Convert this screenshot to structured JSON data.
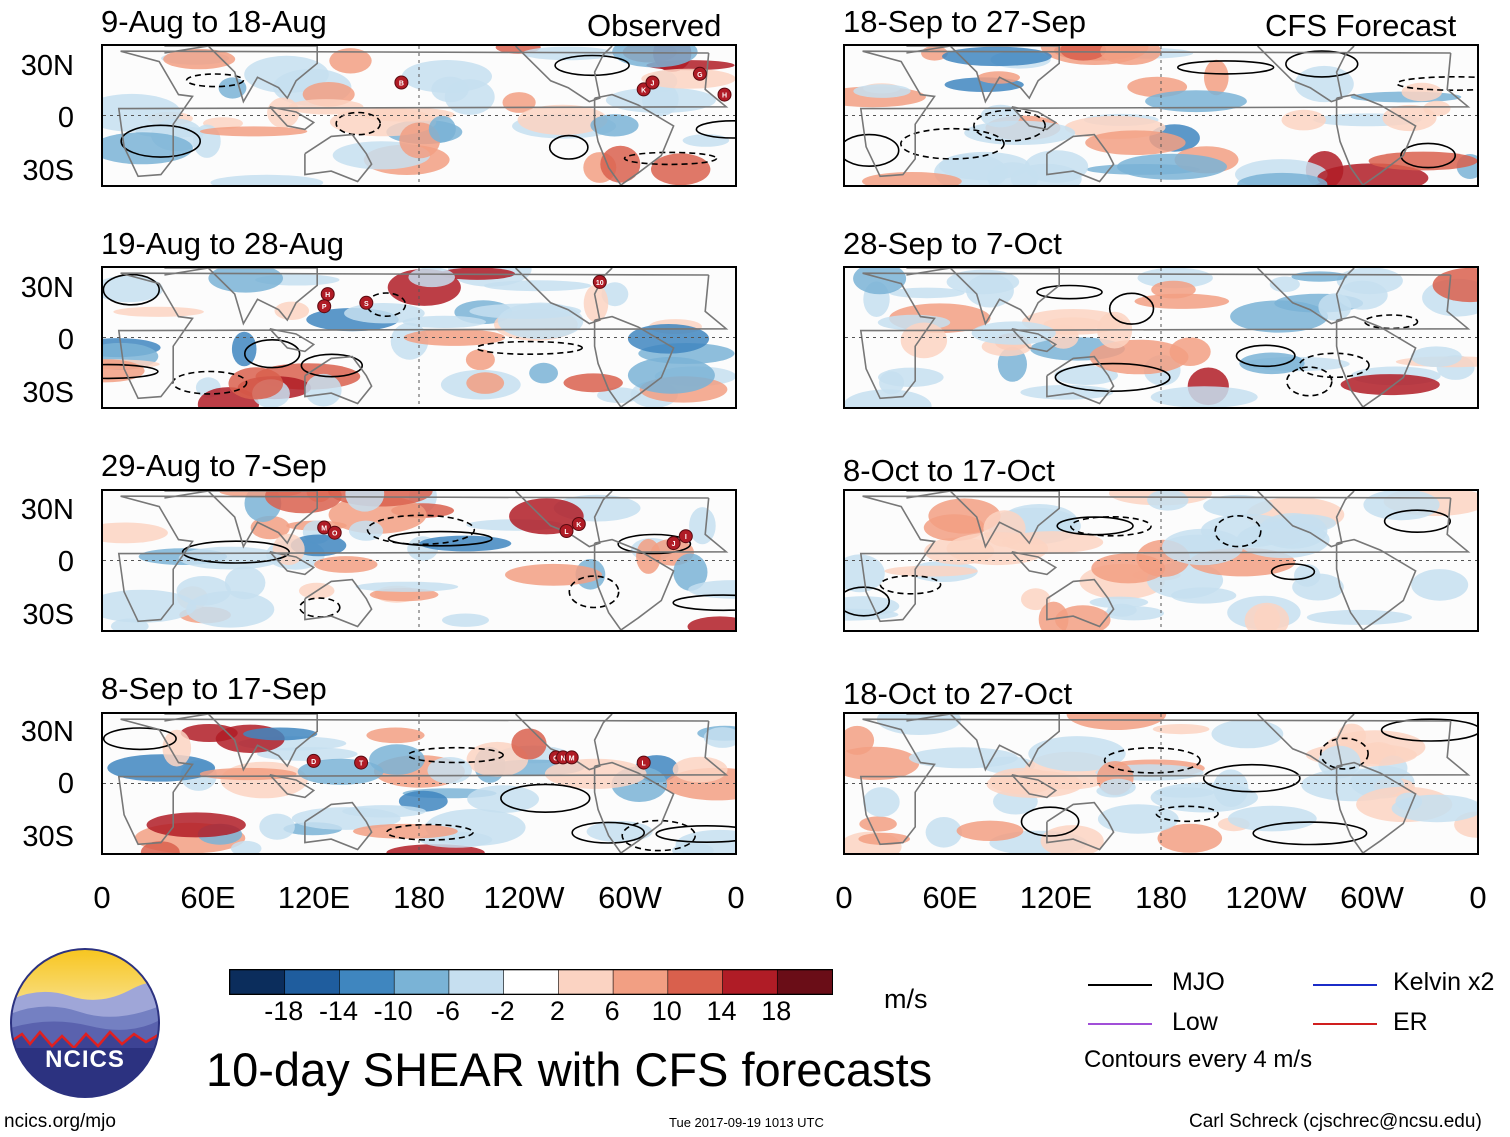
{
  "figure": {
    "main_title": "10-day SHEAR with CFS forecasts",
    "units_label": "m/s",
    "contour_note": "Contours every 4 m/s",
    "logo_text": "NCICS",
    "footer_left": "ncics.org/mjo",
    "footer_center": "Tue 2017-09-19 1013 UTC",
    "footer_right": "Carl Schreck (cjschrec@ncsu.edu)"
  },
  "column_headers": {
    "left": "Observed",
    "right": "CFS Forecast"
  },
  "axes": {
    "y_ticks": [
      "30N",
      "0",
      "30S"
    ],
    "x_ticks": [
      "0",
      "60E",
      "120E",
      "180",
      "120W",
      "60W",
      "0"
    ]
  },
  "panels_observed": [
    {
      "title": "9-Aug to 18-Aug",
      "storms": [
        "B",
        "K",
        "J",
        "G",
        "H"
      ]
    },
    {
      "title": "19-Aug to 28-Aug",
      "storms": [
        "H",
        "P",
        "S",
        "10"
      ]
    },
    {
      "title": "29-Aug to 7-Sep",
      "storms": [
        "M",
        "O",
        "L",
        "K",
        "J",
        "I"
      ]
    },
    {
      "title": "8-Sep to 17-Sep",
      "storms": [
        "D",
        "T",
        "O",
        "N",
        "M",
        "L"
      ]
    }
  ],
  "panels_forecast": [
    {
      "title": "18-Sep to 27-Sep"
    },
    {
      "title": "28-Sep to 7-Oct"
    },
    {
      "title": "8-Oct to 17-Oct"
    },
    {
      "title": "18-Oct to 27-Oct"
    }
  ],
  "colorbar": {
    "labels": [
      "-18",
      "-14",
      "-10",
      "-6",
      "-2",
      "2",
      "6",
      "10",
      "14",
      "18"
    ],
    "colors": [
      "#0b2d5c",
      "#1f5d9e",
      "#3f86bf",
      "#7ab3d6",
      "#c6dff0",
      "#ffffff",
      "#fbd3c2",
      "#f29f83",
      "#d9604d",
      "#b01c26",
      "#6a0d17"
    ]
  },
  "legend": [
    {
      "label": "MJO",
      "color": "#000000"
    },
    {
      "label": "Kelvin x2",
      "color": "#1b2cc8"
    },
    {
      "label": "Low",
      "color": "#a14fd8"
    },
    {
      "label": "ER",
      "color": "#d01e1e"
    }
  ]
}
